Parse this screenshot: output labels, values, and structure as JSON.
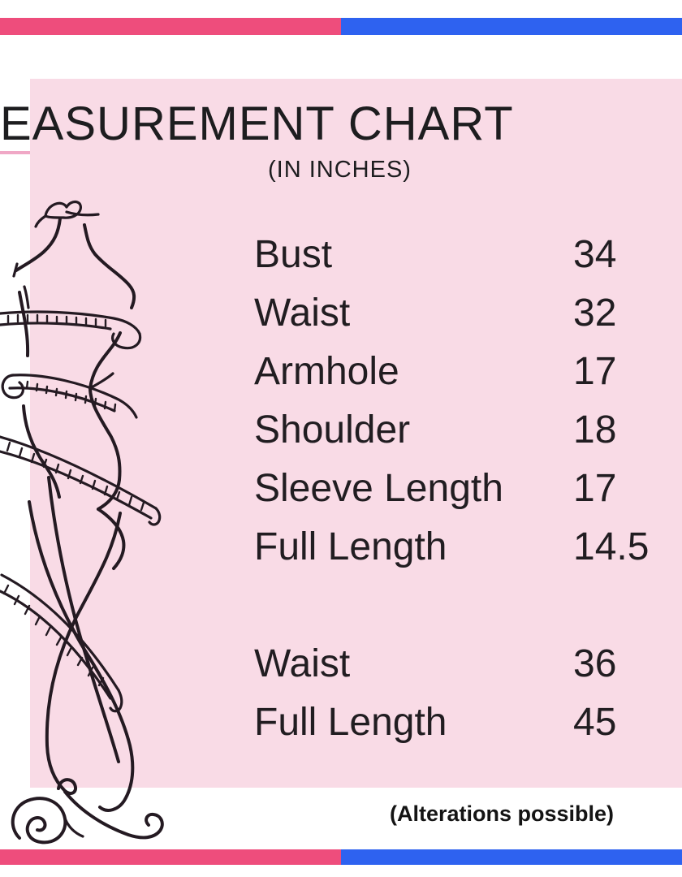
{
  "title": "EASUREMENT CHART",
  "subtitle": "(IN INCHES)",
  "footnote": "(Alterations possible)",
  "colors": {
    "bar_pink": "#ee4d7c",
    "bar_blue": "#2e62f0",
    "panel_pink": "#f9dbe6",
    "accent_line_pink": "#f0a8c6",
    "ink": "#211d21"
  },
  "measurements": {
    "groups": [
      {
        "rows": [
          {
            "label": "Bust",
            "value": "34"
          },
          {
            "label": "Waist",
            "value": "32"
          },
          {
            "label": "Armhole",
            "value": "17"
          },
          {
            "label": "Shoulder",
            "value": "18"
          },
          {
            "label": "Sleeve Length",
            "value": "17"
          },
          {
            "label": "Full Length",
            "value": "14.5"
          }
        ]
      },
      {
        "rows": [
          {
            "label": "Waist",
            "value": "36"
          },
          {
            "label": "Full Length",
            "value": "45"
          }
        ]
      }
    ]
  },
  "chart_data": {
    "type": "table",
    "title": "EASUREMENT CHART (IN INCHES)",
    "columns": [
      "Measurement",
      "Inches"
    ],
    "rows": [
      [
        "Bust",
        34
      ],
      [
        "Waist",
        32
      ],
      [
        "Armhole",
        17
      ],
      [
        "Shoulder",
        18
      ],
      [
        "Sleeve Length",
        17
      ],
      [
        "Full Length",
        14.5
      ],
      [
        "Waist",
        36
      ],
      [
        "Full Length",
        45
      ]
    ],
    "annotations": [
      "(Alterations possible)"
    ]
  }
}
